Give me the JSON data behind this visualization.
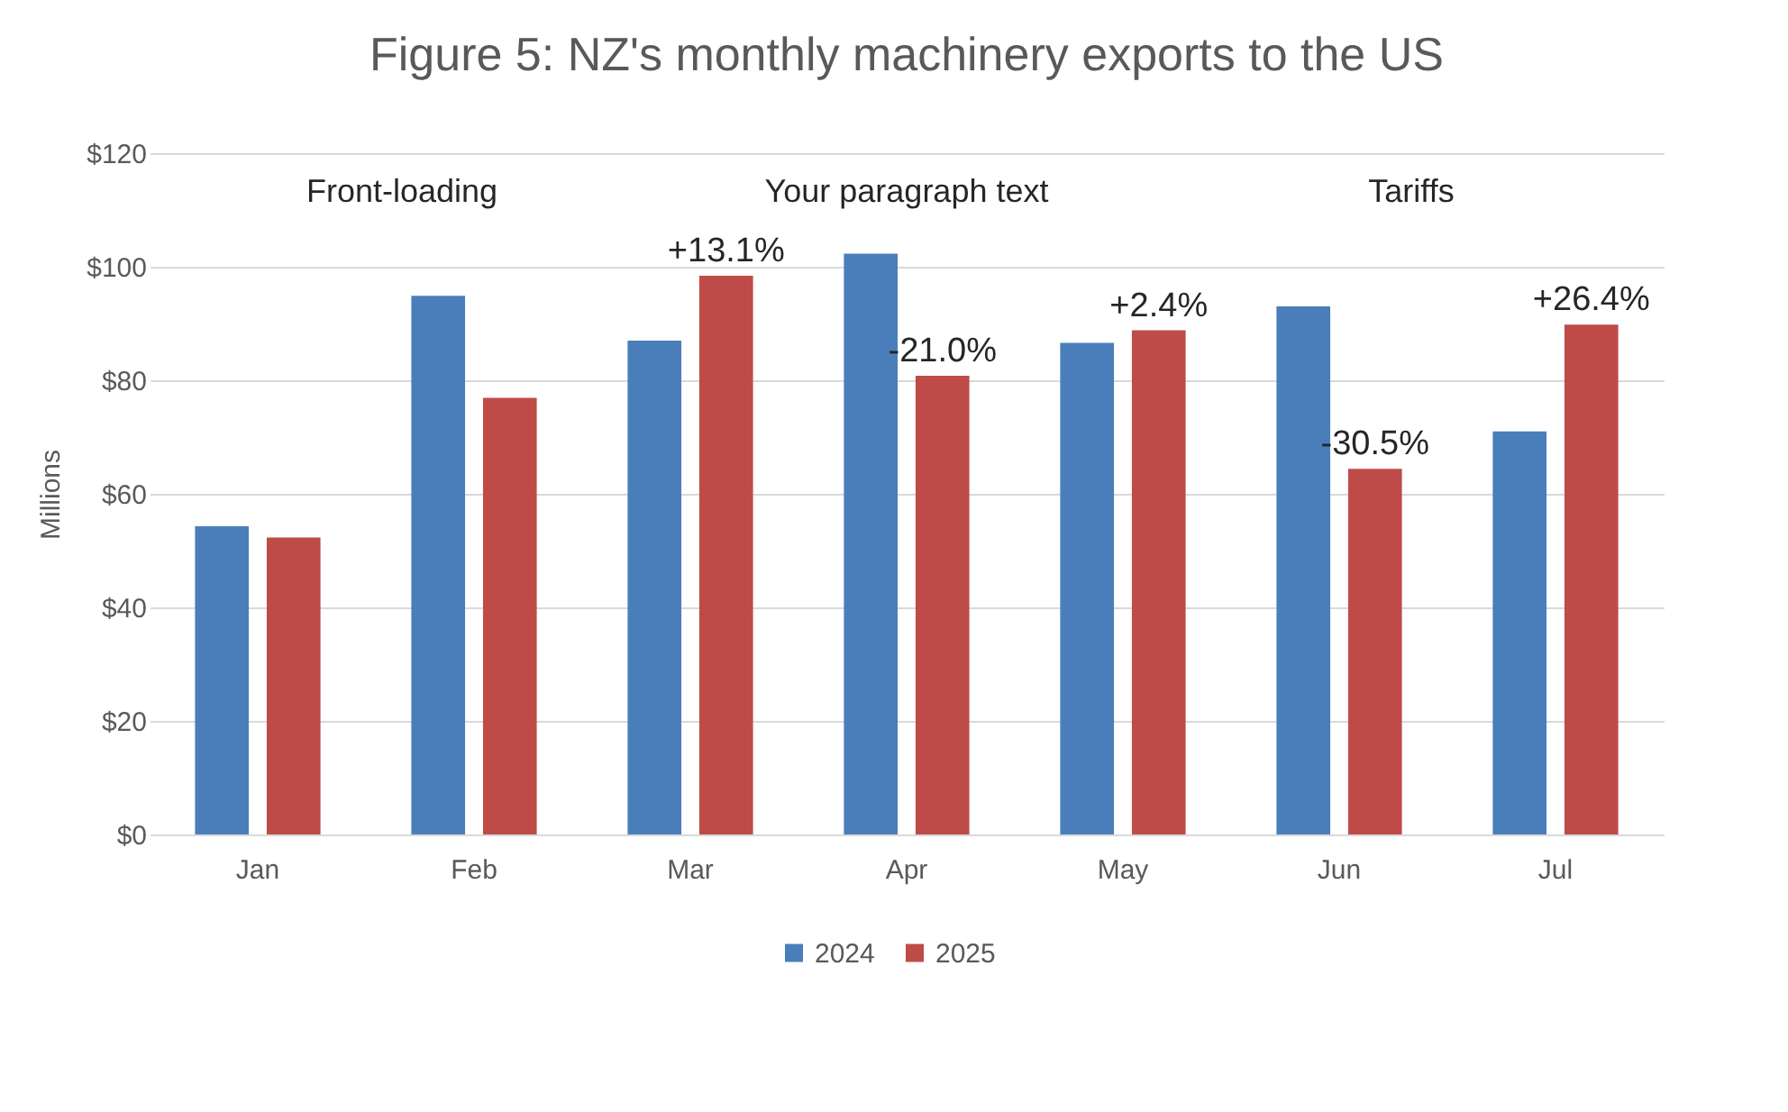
{
  "chart_data": {
    "type": "bar",
    "title": "Figure 5: NZ's monthly machinery exports to the US",
    "ylabel": "Millions",
    "categories": [
      "Jan",
      "Feb",
      "Mar",
      "Apr",
      "May",
      "Jun",
      "Jul"
    ],
    "series": [
      {
        "name": "2024",
        "color": "#4a7ebb",
        "values": [
          54.3,
          94.9,
          87.0,
          102.3,
          86.6,
          93.0,
          71.0
        ]
      },
      {
        "name": "2025",
        "color": "#be4b48",
        "values": [
          52.3,
          76.9,
          98.4,
          80.8,
          88.8,
          64.4,
          89.8
        ]
      }
    ],
    "ylim": [
      0,
      120
    ],
    "yticks": [
      {
        "value": 0,
        "label": "$0"
      },
      {
        "value": 20,
        "label": "$20"
      },
      {
        "value": 40,
        "label": "$40"
      },
      {
        "value": 60,
        "label": "$60"
      },
      {
        "value": 80,
        "label": "$80"
      },
      {
        "value": 100,
        "label": "$100"
      },
      {
        "value": 120,
        "label": "$120"
      }
    ],
    "grid": "y",
    "legend": "bottom",
    "annotations": [
      "Front-loading",
      "Your paragraph text",
      "Tariffs",
      {
        "text": "+13.1%",
        "x": "Mar",
        "y": 98.4
      },
      {
        "text": "-21.0%",
        "x": "Apr",
        "y": 80.8
      },
      {
        "text": "+2.4%",
        "x": "May",
        "y": 88.8
      },
      {
        "text": "-30.5%",
        "x": "Jun",
        "y": 64.4
      },
      {
        "text": "+26.4%",
        "x": "Jul",
        "y": 89.8
      }
    ]
  }
}
